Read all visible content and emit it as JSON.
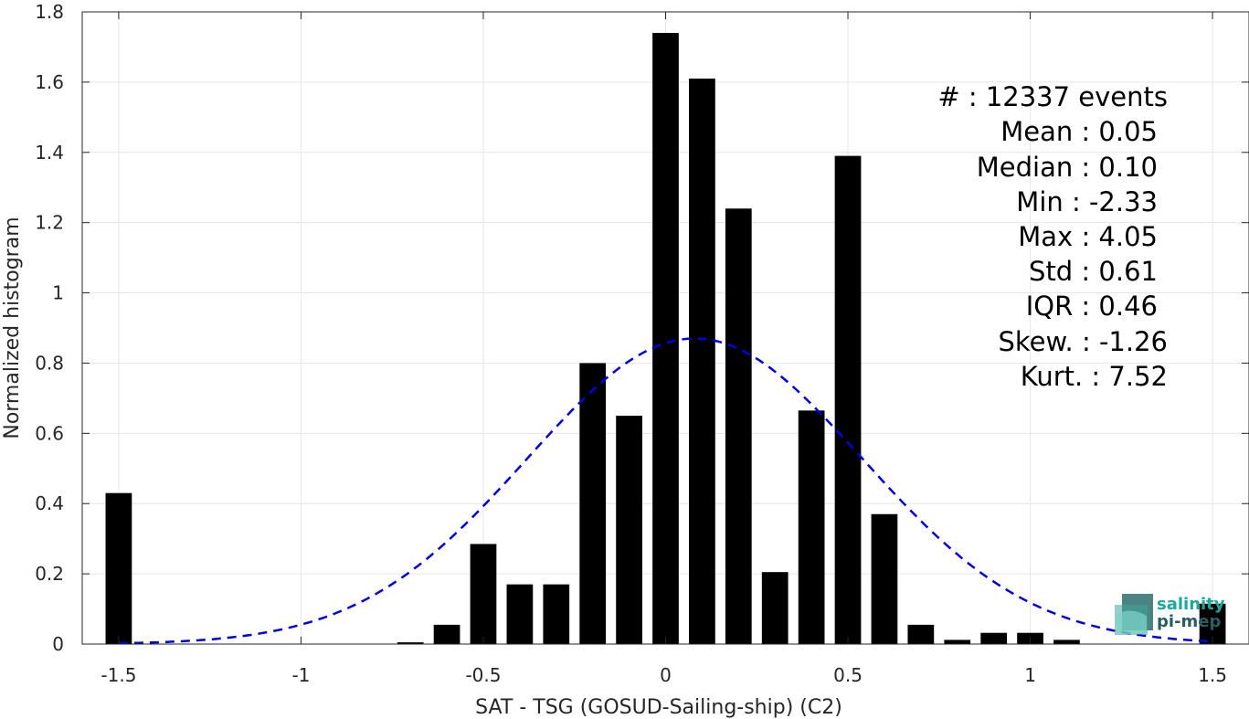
{
  "chart_data": {
    "type": "bar",
    "xlabel": "SAT - TSG (GOSUD-Sailing-ship) (C2)",
    "ylabel": "Normalized histogram",
    "xlim": [
      -1.6,
      1.6
    ],
    "ylim": [
      0,
      1.8
    ],
    "grid": true,
    "x": [
      -1.5,
      -0.7,
      -0.6,
      -0.5,
      -0.4,
      -0.3,
      -0.2,
      -0.1,
      0.0,
      0.1,
      0.2,
      0.3,
      0.4,
      0.5,
      0.6,
      0.7,
      0.8,
      0.9,
      1.0,
      1.1,
      1.5
    ],
    "values": [
      0.43,
      0.005,
      0.055,
      0.285,
      0.17,
      0.17,
      0.8,
      0.65,
      1.74,
      1.61,
      1.24,
      0.205,
      0.665,
      1.39,
      0.37,
      0.055,
      0.012,
      0.032,
      0.032,
      0.012,
      0.115
    ],
    "bar_color": "#000000",
    "fit_curve": {
      "type": "normal",
      "color": "#0000e0",
      "style": "dashed",
      "mean": 0.08,
      "peak": 0.87,
      "sigma": 0.46
    },
    "xticks": [
      "-1.5",
      "-1",
      "-0.5",
      "0",
      "0.5",
      "1",
      "1.5"
    ],
    "xtick_values": [
      -1.5,
      -1,
      -0.5,
      0,
      0.5,
      1,
      1.5
    ],
    "yticks": [
      "0",
      "0.2",
      "0.4",
      "0.6",
      "0.8",
      "1",
      "1.2",
      "1.4",
      "1.6",
      "1.8"
    ],
    "ytick_values": [
      0,
      0.2,
      0.4,
      0.6,
      0.8,
      1.0,
      1.2,
      1.4,
      1.6,
      1.8
    ]
  },
  "stats": [
    "#  : 12337 events",
    "Mean : 0.05",
    "Median : 0.10",
    "Min : -2.33",
    "Max : 4.05",
    "Std : 0.61",
    "IQR : 0.46",
    "Skew. : -1.26",
    "Kurt. : 7.52"
  ],
  "logo": {
    "line1": "salinity",
    "line2": "pi-mep",
    "color1": "#1aa99a",
    "color2": "#2a5f62"
  }
}
